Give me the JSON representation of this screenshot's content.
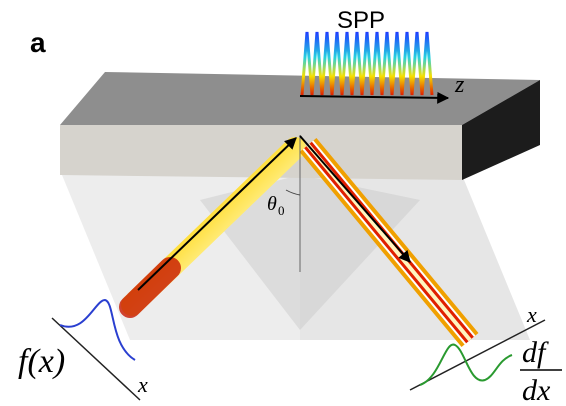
{
  "panel_label": "a",
  "wave_label": "SPP",
  "axis_z": "z",
  "angle": {
    "symbol": "θ",
    "subscript": "0"
  },
  "input": {
    "label": "f(x)",
    "axis": "x"
  },
  "output": {
    "numerator": "df",
    "denominator": "dx",
    "axis": "x"
  }
}
